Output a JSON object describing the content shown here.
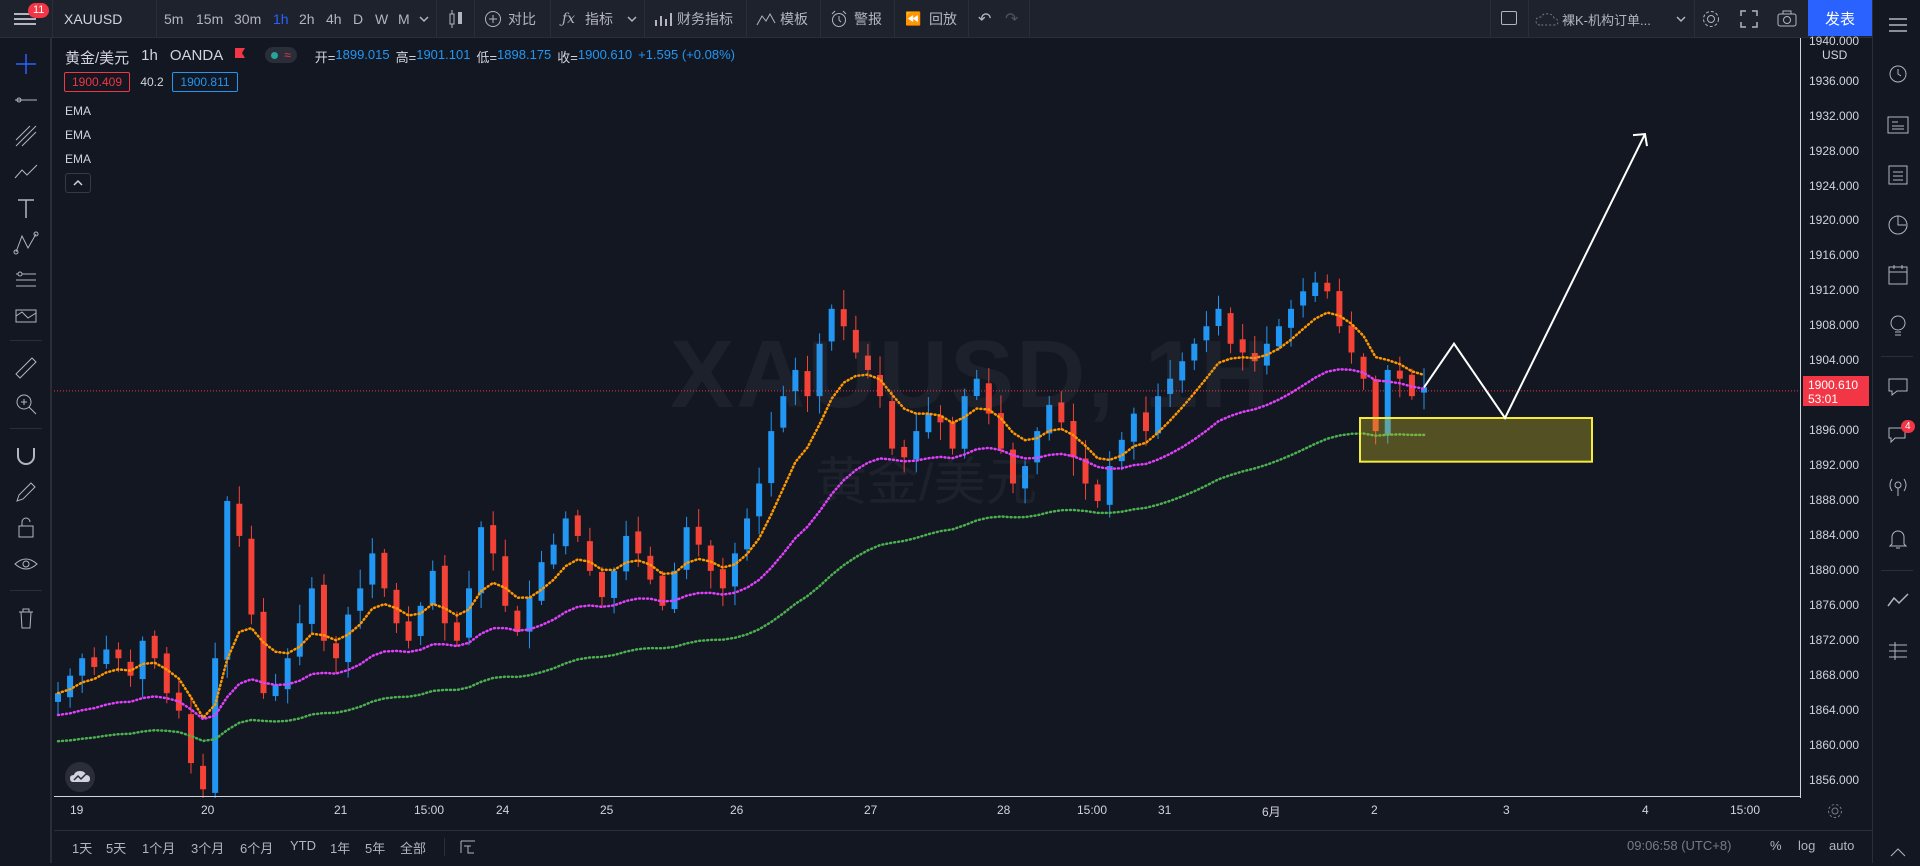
{
  "topbar": {
    "notification_count": "11",
    "symbol": "XAUUSD",
    "timeframes": [
      "5m",
      "15m",
      "30m",
      "1h",
      "2h",
      "4h",
      "D",
      "W",
      "M"
    ],
    "active_timeframe": "1h",
    "compare_label": "对比",
    "indicators_label": "指标",
    "financials_label": "财务指标",
    "templates_label": "模板",
    "alerts_label": "警报",
    "replay_label": "回放",
    "layout_name": "裸K-机构订单...",
    "publish_label": "发表"
  },
  "legend": {
    "symbol_name": "黄金/美元",
    "interval": "1h",
    "exchange": "OANDA",
    "open_label": "开=",
    "open": "1899.015",
    "high_label": "高=",
    "high": "1901.101",
    "low_label": "低=",
    "low": "1898.175",
    "close_label": "收=",
    "close": "1900.610",
    "change": "+1.595 (+0.08%)",
    "bid": "1900.409",
    "spread": "40.2",
    "ask": "1900.811",
    "indicators": [
      "EMA",
      "EMA",
      "EMA"
    ]
  },
  "watermark": {
    "symbol": "XAUUSD, 1H",
    "name": "黄金/美元"
  },
  "price_axis": {
    "currency": "USD",
    "top_label": "1940.000",
    "ticks": [
      "1936.000",
      "1932.000",
      "1928.000",
      "1924.000",
      "1920.000",
      "1916.000",
      "1912.000",
      "1908.000",
      "1904.000",
      "1896.000",
      "1892.000",
      "1888.000",
      "1884.000",
      "1880.000",
      "1876.000",
      "1872.000",
      "1868.000",
      "1864.000",
      "1860.000",
      "1856.000"
    ],
    "last_price": "1900.610",
    "countdown": "53:01"
  },
  "time_axis": {
    "labels": [
      "19",
      "20",
      "21",
      "15:00",
      "24",
      "25",
      "26",
      "27",
      "28",
      "15:00",
      "31",
      "6月",
      "2",
      "3",
      "4",
      "15:00"
    ]
  },
  "footer": {
    "ranges": [
      "1天",
      "5天",
      "1个月",
      "3个月",
      "6个月",
      "YTD",
      "1年",
      "5年",
      "全部"
    ],
    "clock": "09:06:58 (UTC+8)",
    "percent": "%",
    "log": "log",
    "auto": "auto"
  },
  "right_toolbar": {
    "chat_badge": "4"
  },
  "colors": {
    "bg": "#131722",
    "up": "#2196f3",
    "down": "#f44336",
    "ema_fast": "#ff9800",
    "ema_mid": "#e040fb",
    "ema_slow": "#4caf50",
    "zone": "#f5eb3b"
  },
  "chart_data": {
    "type": "candlestick",
    "x_start_label": "19",
    "y_range": [
      1854,
      1941
    ],
    "candles_close_path": [
      1866,
      1868,
      1870,
      1869,
      1871,
      1870,
      1868,
      1872,
      1870,
      1866,
      1864,
      1858,
      1855,
      1870,
      1888,
      1884,
      1875,
      1866,
      1867,
      1870,
      1874,
      1878,
      1872,
      1870,
      1875,
      1878,
      1882,
      1878,
      1874,
      1872,
      1876,
      1880,
      1874,
      1872,
      1878,
      1885,
      1882,
      1876,
      1873,
      1877,
      1881,
      1883,
      1886,
      1884,
      1880,
      1877,
      1880,
      1884,
      1882,
      1879,
      1876,
      1880,
      1885,
      1883,
      1880,
      1878,
      1882,
      1886,
      1890,
      1896,
      1900,
      1903,
      1900,
      1906,
      1910,
      1908,
      1905,
      1903,
      1900,
      1894,
      1893,
      1896,
      1898,
      1897,
      1894,
      1900,
      1902,
      1898,
      1894,
      1890,
      1892,
      1896,
      1899,
      1897,
      1893,
      1890,
      1888,
      1892,
      1895,
      1898,
      1896,
      1900,
      1902,
      1904,
      1906,
      1908,
      1910,
      1906,
      1905,
      1904,
      1906,
      1908,
      1910,
      1912,
      1913,
      1912,
      1908,
      1905,
      1902,
      1896,
      1903,
      1902,
      1900,
      1901
    ],
    "ema_fast_end": 1903,
    "ema_mid_end": 1901,
    "ema_slow_end": 1899,
    "zone_range": [
      1892.5,
      1897.5
    ],
    "projection_path": [
      1901,
      1906,
      1897.5,
      1930
    ]
  }
}
